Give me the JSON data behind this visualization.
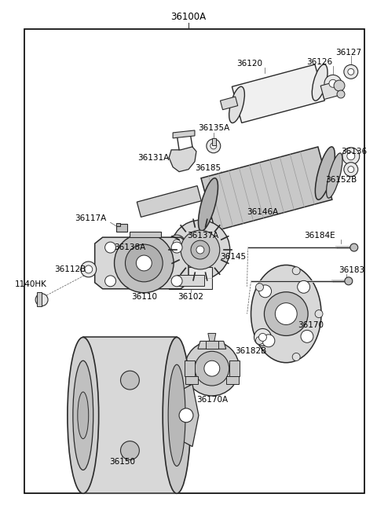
{
  "title": "36100A",
  "background_color": "#ffffff",
  "border_color": "#000000",
  "line_color": "#2a2a2a",
  "text_color": "#000000",
  "fig_width": 4.8,
  "fig_height": 6.57,
  "dpi": 100,
  "xlim": [
    0,
    480
  ],
  "ylim": [
    0,
    657
  ]
}
